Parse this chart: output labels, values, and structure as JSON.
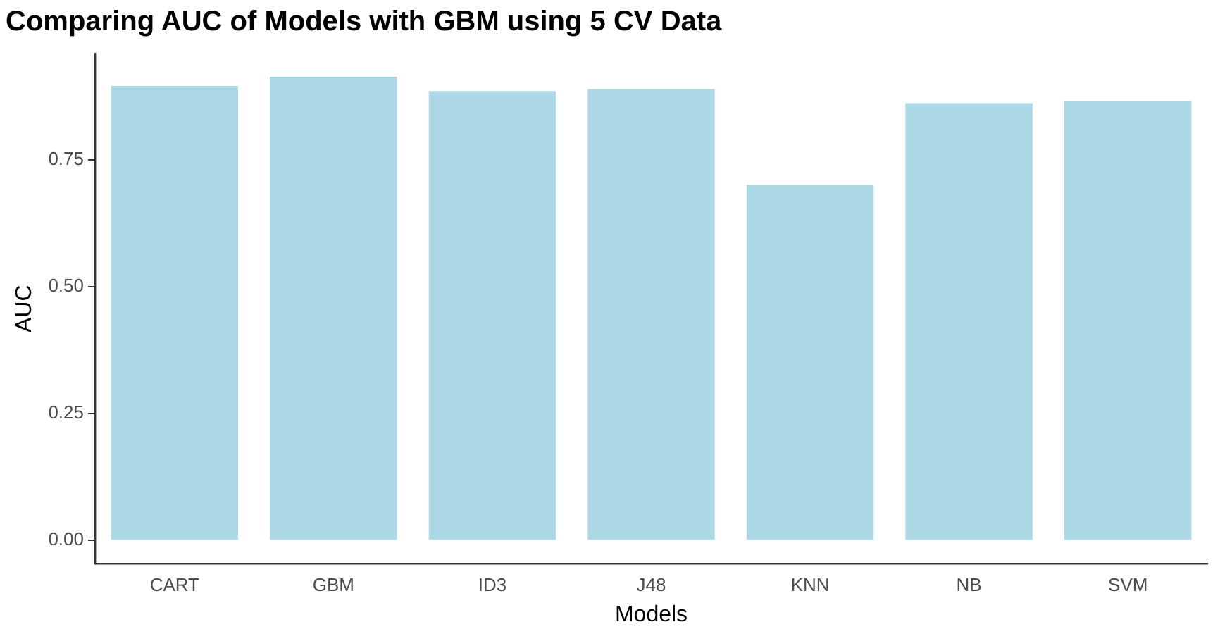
{
  "chart_data": {
    "type": "bar",
    "title": "Comparing AUC of Models with GBM using 5 CV Data",
    "xlabel": "Models",
    "ylabel": "AUC",
    "categories": [
      "CART",
      "GBM",
      "ID3",
      "J48",
      "KNN",
      "NB",
      "SVM"
    ],
    "values": [
      0.896,
      0.914,
      0.886,
      0.89,
      0.701,
      0.862,
      0.866
    ],
    "color": "#add8e6",
    "ylim": [
      -0.046,
      0.96
    ],
    "yticks": [
      {
        "value": 0,
        "label": "0.00"
      },
      {
        "value": 0.25,
        "label": "0.25"
      },
      {
        "value": 0.5,
        "label": "0.50"
      },
      {
        "value": 0.75,
        "label": "0.75"
      }
    ],
    "grid": false,
    "legend": false
  }
}
